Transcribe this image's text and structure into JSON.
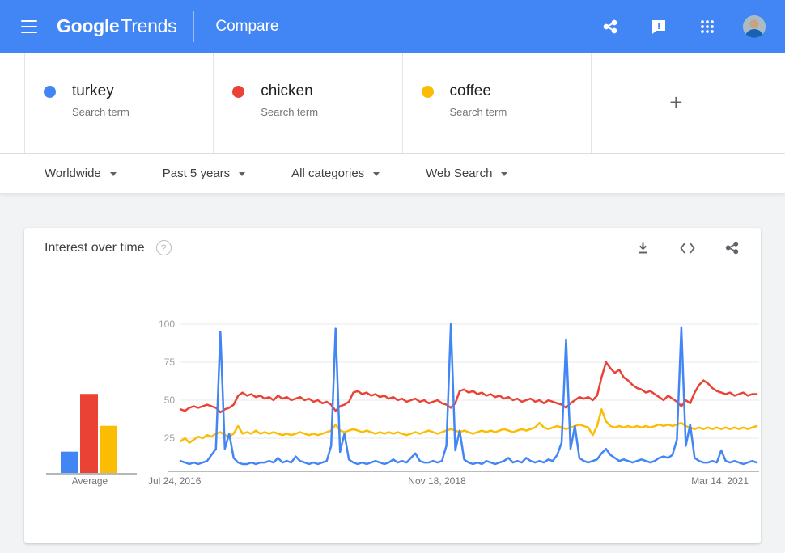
{
  "header": {
    "logo_google": "Google",
    "logo_trends": "Trends",
    "page_title": "Compare",
    "icons": [
      "menu-icon",
      "share-icon",
      "feedback-icon",
      "apps-grid-icon",
      "avatar"
    ]
  },
  "terms": [
    {
      "label": "turkey",
      "sublabel": "Search term",
      "color": "#4285f4"
    },
    {
      "label": "chicken",
      "sublabel": "Search term",
      "color": "#ea4335"
    },
    {
      "label": "coffee",
      "sublabel": "Search term",
      "color": "#fbbc04"
    }
  ],
  "add_term": {
    "label": "+"
  },
  "filters": [
    {
      "label": "Worldwide"
    },
    {
      "label": "Past 5 years"
    },
    {
      "label": "All categories"
    },
    {
      "label": "Web Search"
    }
  ],
  "panel": {
    "title": "Interest over time",
    "icons": [
      "help-icon",
      "download-icon",
      "embed-icon",
      "share-icon"
    ]
  },
  "chart_data": {
    "type": "line",
    "title": "Interest over time",
    "x_axis_labels": [
      "Jul 24, 2016",
      "Nov 18, 2018",
      "Mar 14, 2021"
    ],
    "x_range_note": "weekly interest, ~biweekly sampled points from Jul 24 2016 to Jul 2021",
    "y_ticks": [
      100,
      75,
      50,
      25
    ],
    "ylim": [
      0,
      100
    ],
    "grid": true,
    "averages": {
      "label": "Average",
      "values": [
        {
          "name": "turkey",
          "value": 14,
          "color": "#4285f4"
        },
        {
          "name": "chicken",
          "value": 52,
          "color": "#ea4335"
        },
        {
          "name": "coffee",
          "value": 31,
          "color": "#fbbc04"
        }
      ]
    },
    "series": [
      {
        "name": "turkey",
        "color": "#4285f4",
        "values": [
          10,
          9,
          8,
          9,
          8,
          9,
          10,
          14,
          18,
          95,
          18,
          28,
          12,
          9,
          8,
          8,
          9,
          8,
          9,
          9,
          10,
          9,
          12,
          9,
          10,
          9,
          13,
          10,
          9,
          8,
          9,
          8,
          9,
          10,
          20,
          97,
          16,
          28,
          11,
          9,
          8,
          9,
          8,
          9,
          10,
          9,
          8,
          9,
          11,
          9,
          10,
          9,
          12,
          15,
          10,
          9,
          9,
          10,
          9,
          10,
          20,
          100,
          17,
          30,
          11,
          9,
          8,
          9,
          8,
          10,
          9,
          8,
          9,
          10,
          12,
          9,
          10,
          9,
          12,
          10,
          9,
          10,
          9,
          11,
          10,
          14,
          22,
          90,
          18,
          33,
          12,
          10,
          9,
          10,
          11,
          15,
          18,
          14,
          12,
          10,
          11,
          10,
          9,
          10,
          11,
          10,
          9,
          10,
          12,
          13,
          12,
          14,
          24,
          98,
          20,
          34,
          12,
          10,
          9,
          9,
          10,
          9,
          17,
          10,
          9,
          10,
          9,
          8,
          9,
          10,
          9
        ]
      },
      {
        "name": "chicken",
        "color": "#ea4335",
        "values": [
          44,
          43,
          45,
          46,
          45,
          46,
          47,
          46,
          45,
          42,
          44,
          45,
          47,
          53,
          55,
          53,
          54,
          52,
          53,
          51,
          52,
          50,
          53,
          51,
          52,
          50,
          51,
          52,
          50,
          51,
          49,
          50,
          48,
          49,
          47,
          43,
          46,
          47,
          49,
          55,
          56,
          54,
          55,
          53,
          54,
          52,
          53,
          51,
          52,
          50,
          51,
          49,
          50,
          51,
          49,
          50,
          48,
          49,
          50,
          48,
          47,
          45,
          48,
          56,
          57,
          55,
          56,
          54,
          55,
          53,
          54,
          52,
          53,
          51,
          52,
          50,
          51,
          49,
          50,
          51,
          49,
          50,
          48,
          50,
          49,
          48,
          47,
          45,
          48,
          50,
          52,
          51,
          52,
          50,
          53,
          65,
          75,
          71,
          68,
          70,
          65,
          63,
          60,
          58,
          57,
          55,
          56,
          54,
          52,
          50,
          53,
          51,
          49,
          46,
          50,
          48,
          55,
          60,
          63,
          61,
          58,
          56,
          55,
          54,
          55,
          53,
          54,
          55,
          53,
          54,
          54
        ]
      },
      {
        "name": "coffee",
        "color": "#fbbc04",
        "values": [
          23,
          25,
          22,
          24,
          26,
          25,
          27,
          26,
          28,
          29,
          27,
          26,
          28,
          33,
          28,
          29,
          28,
          30,
          28,
          29,
          28,
          29,
          28,
          27,
          28,
          27,
          28,
          29,
          28,
          27,
          28,
          27,
          28,
          29,
          30,
          34,
          30,
          29,
          30,
          31,
          30,
          29,
          30,
          29,
          28,
          29,
          28,
          29,
          28,
          29,
          28,
          27,
          28,
          29,
          28,
          29,
          30,
          29,
          28,
          29,
          30,
          31,
          30,
          29,
          30,
          29,
          28,
          29,
          30,
          29,
          30,
          29,
          30,
          31,
          30,
          29,
          30,
          31,
          30,
          31,
          32,
          35,
          32,
          31,
          32,
          33,
          32,
          31,
          32,
          33,
          34,
          33,
          32,
          27,
          33,
          44,
          36,
          33,
          32,
          33,
          32,
          33,
          32,
          33,
          32,
          33,
          32,
          33,
          34,
          33,
          34,
          33,
          34,
          35,
          33,
          32,
          31,
          32,
          31,
          32,
          31,
          32,
          31,
          32,
          31,
          32,
          31,
          32,
          31,
          32,
          33
        ]
      }
    ],
    "legend_position": "term cards above chart",
    "colors": {
      "turkey": "#4285f4",
      "chicken": "#ea4335",
      "coffee": "#fbbc04"
    }
  }
}
